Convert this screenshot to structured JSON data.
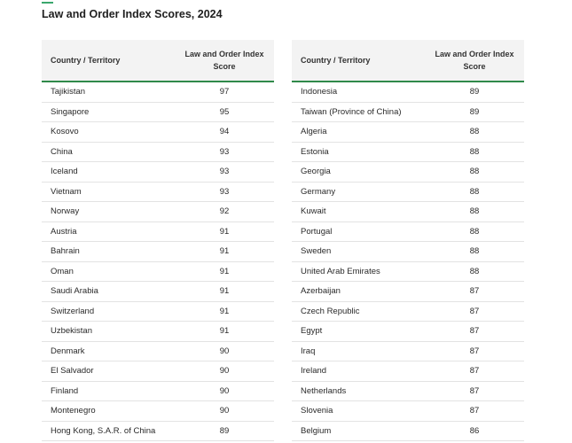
{
  "title": "Law and Order Index Scores, 2024",
  "colors": {
    "accent": "#3aa76d",
    "header_rule": "#2f8a4a",
    "header_bg": "#f3f3f3"
  },
  "header": {
    "country": "Country / Territory",
    "score": "Law and Order Index Score"
  },
  "left_table": [
    {
      "country": "Tajikistan",
      "score": "97"
    },
    {
      "country": "Singapore",
      "score": "95"
    },
    {
      "country": "Kosovo",
      "score": "94"
    },
    {
      "country": "China",
      "score": "93"
    },
    {
      "country": "Iceland",
      "score": "93"
    },
    {
      "country": "Vietnam",
      "score": "93"
    },
    {
      "country": "Norway",
      "score": "92"
    },
    {
      "country": "Austria",
      "score": "91"
    },
    {
      "country": "Bahrain",
      "score": "91"
    },
    {
      "country": "Oman",
      "score": "91"
    },
    {
      "country": "Saudi Arabia",
      "score": "91"
    },
    {
      "country": "Switzerland",
      "score": "91"
    },
    {
      "country": "Uzbekistan",
      "score": "91"
    },
    {
      "country": "Denmark",
      "score": "90"
    },
    {
      "country": "El Salvador",
      "score": "90"
    },
    {
      "country": "Finland",
      "score": "90"
    },
    {
      "country": "Montenegro",
      "score": "90"
    },
    {
      "country": "Hong Kong, S.A.R. of China",
      "score": "89"
    }
  ],
  "right_table": [
    {
      "country": "Indonesia",
      "score": "89"
    },
    {
      "country": "Taiwan (Province of China)",
      "score": "89"
    },
    {
      "country": "Algeria",
      "score": "88"
    },
    {
      "country": "Estonia",
      "score": "88"
    },
    {
      "country": "Georgia",
      "score": "88"
    },
    {
      "country": "Germany",
      "score": "88"
    },
    {
      "country": "Kuwait",
      "score": "88"
    },
    {
      "country": "Portugal",
      "score": "88"
    },
    {
      "country": "Sweden",
      "score": "88"
    },
    {
      "country": "United Arab Emirates",
      "score": "88"
    },
    {
      "country": "Azerbaijan",
      "score": "87"
    },
    {
      "country": "Czech Republic",
      "score": "87"
    },
    {
      "country": "Egypt",
      "score": "87"
    },
    {
      "country": "Iraq",
      "score": "87"
    },
    {
      "country": "Ireland",
      "score": "87"
    },
    {
      "country": "Netherlands",
      "score": "87"
    },
    {
      "country": "Slovenia",
      "score": "87"
    },
    {
      "country": "Belgium",
      "score": "86"
    }
  ]
}
